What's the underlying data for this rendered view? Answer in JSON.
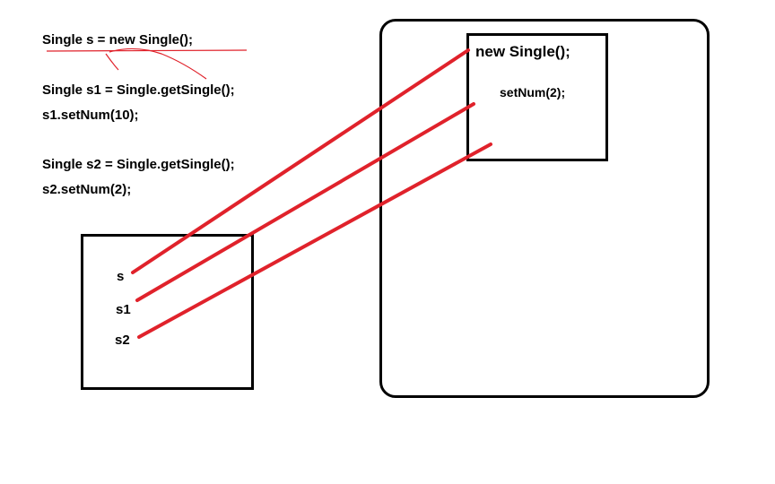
{
  "code": {
    "line1": "Single s = new Single();",
    "line2": "Single s1 = Single.getSingle();",
    "line3": "s1.setNum(10);",
    "line4": "Single s2 = Single.getSingle();",
    "line5": "s2.setNum(2);"
  },
  "stack": {
    "var_s": "s",
    "var_s1": "s1",
    "var_s2": "s2"
  },
  "heap": {
    "object_title": "new Single();",
    "object_call": "setNum(2);"
  },
  "colors": {
    "arrow": "#e0222b",
    "border": "#000000"
  }
}
